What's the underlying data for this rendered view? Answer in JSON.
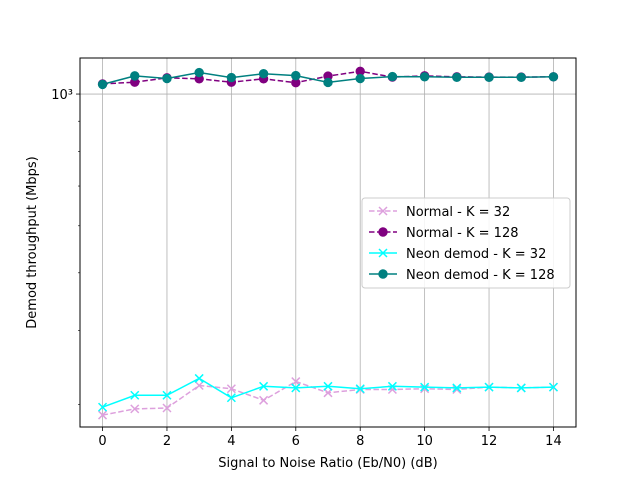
{
  "chart_data": {
    "type": "line",
    "title": "",
    "xlabel": "Signal to Noise Ratio (Eb/N0) (dB)",
    "ylabel": "Demod throughput (Mbps)",
    "xlim": [
      -0.7,
      14.7
    ],
    "ylim": [
      275,
      1150
    ],
    "yscale": "log",
    "grid": true,
    "legend_position": "center-right",
    "x_ticks": [
      0,
      2,
      4,
      6,
      8,
      10,
      12,
      14
    ],
    "y_ticks": [
      {
        "value": 1000,
        "label": "10³"
      }
    ],
    "x": [
      0,
      1,
      2,
      3,
      4,
      5,
      6,
      7,
      8,
      9,
      10,
      11,
      12,
      13,
      14
    ],
    "series": [
      {
        "name": "Normal - K = 32",
        "color": "#dda0dd",
        "dash": true,
        "marker": "x",
        "values": [
          288,
          295,
          296,
          323,
          319,
          305,
          328,
          314,
          318,
          318,
          319,
          318,
          321,
          320,
          321
        ]
      },
      {
        "name": "Normal - K = 128",
        "color": "#800080",
        "dash": true,
        "marker": "circle",
        "values": [
          1040,
          1047,
          1065,
          1061,
          1047,
          1061,
          1045,
          1072,
          1092,
          1068,
          1073,
          1069,
          1068,
          1068,
          1069
        ]
      },
      {
        "name": "Neon demod - K = 32",
        "color": "#00ffff",
        "dash": false,
        "marker": "x",
        "values": [
          297,
          311,
          311,
          332,
          308,
          322,
          320,
          322,
          319,
          322,
          321,
          320,
          321,
          320,
          321
        ]
      },
      {
        "name": "Neon demod - K = 128",
        "color": "#008080",
        "dash": false,
        "marker": "circle",
        "values": [
          1038,
          1073,
          1062,
          1087,
          1066,
          1082,
          1074,
          1046,
          1062,
          1070,
          1069,
          1067,
          1067,
          1067,
          1069
        ]
      }
    ]
  }
}
